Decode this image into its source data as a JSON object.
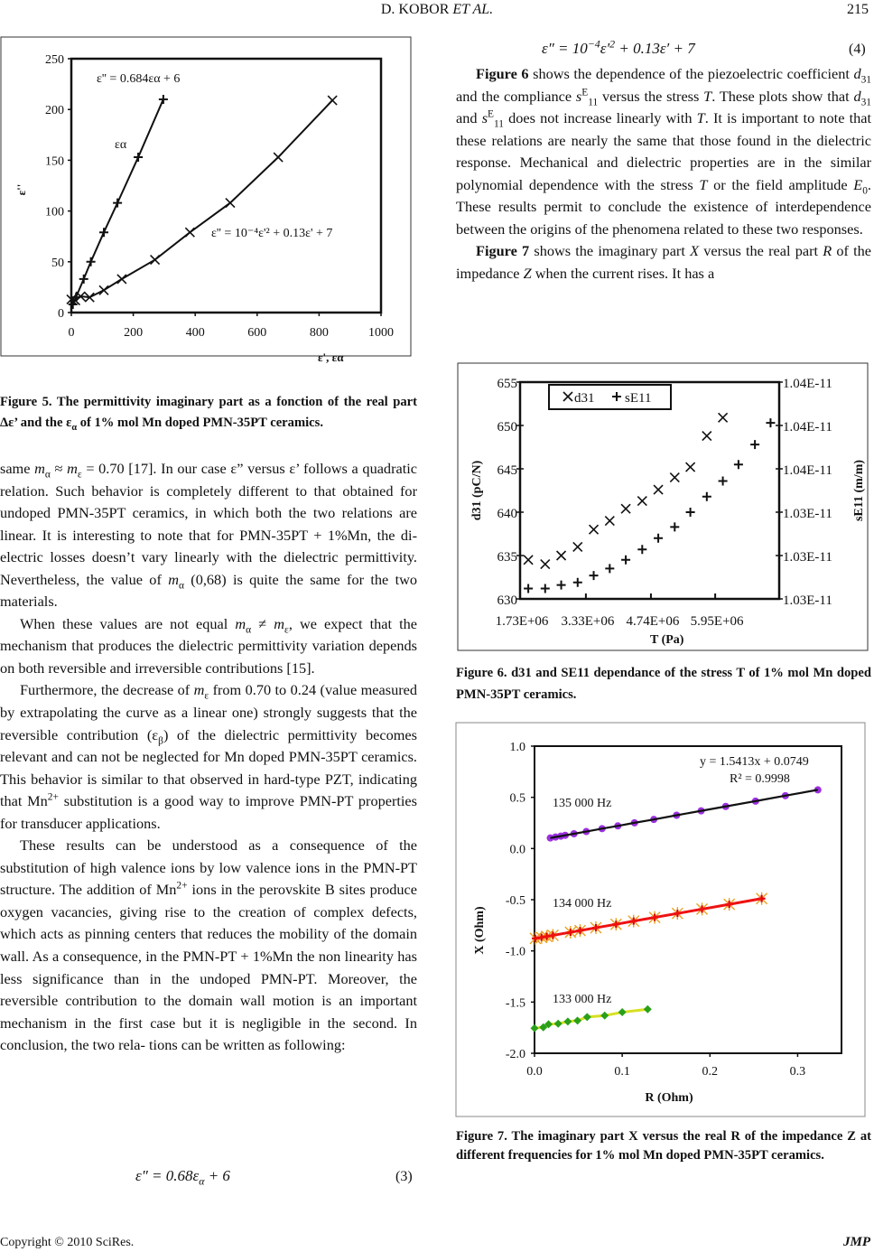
{
  "header": {
    "author": "D. KOBOR ",
    "etal": "ET AL.",
    "page": "215"
  },
  "footer": {
    "copyright": "Copyright © 2010 SciRes.",
    "journal": "JMP"
  },
  "left_paragraphs": [
    [
      [
        "same ",
        ""
      ],
      [
        "m",
        "i"
      ],
      [
        "α",
        "sub"
      ],
      [
        " ≈ ",
        ""
      ],
      [
        "m",
        "i"
      ],
      [
        "ε",
        "sub"
      ],
      [
        " = 0.70 [17]. In our case ε” versus ε’ fol­lows a quadratic relation. Such behavior is completely different to that obtained for undoped PMN-35PT ce­ramics, in which both the two relations are linear. It is interesting to note that for PMN-35PT + 1%Mn, the di­electric losses doesn’t vary linearly with the dielectric permittivity. Nevertheless, the value of ",
        ""
      ],
      [
        "m",
        "i"
      ],
      [
        "α",
        "sub"
      ],
      [
        " (0,68) is quite the same for the two materials.",
        ""
      ]
    ],
    [
      [
        "When these values are not equal ",
        ""
      ],
      [
        "m",
        "i"
      ],
      [
        "α",
        "sub"
      ],
      [
        " ≠ ",
        ""
      ],
      [
        "m",
        "i"
      ],
      [
        "ε",
        "sub"
      ],
      [
        ", we expect that the mechanism that produces the dielectric permit­tivity variation depends on both reversible and irreversi­ble contributions [15].",
        ""
      ]
    ],
    [
      [
        "Furthermore, the decrease of ",
        ""
      ],
      [
        "m",
        "i"
      ],
      [
        "ε",
        "sub"
      ],
      [
        " from 0.70 to 0.24 (value measured by extrapolating the curve as a linear one) strongly suggests that the reversible contribution (ε",
        ""
      ],
      [
        "β",
        "sub"
      ],
      [
        ") of the dielectric permittivity becomes relevant and can not be neglected for Mn doped PMN-35PT ceramics. This behavior is similar to that observed in hard-type PZT, indicating that Mn",
        ""
      ],
      [
        "2+",
        "sup"
      ],
      [
        " substitution is a good way to improve PMN-PT properties for transducer applications.",
        ""
      ]
    ],
    [
      [
        "These results can be understood as a consequence of the substitution of high valence ions by low valence ions in the PMN-PT structure. The addition of Mn",
        ""
      ],
      [
        "2+",
        "sup"
      ],
      [
        " ions in the perovskite B sites produce oxygen vacancies, giving rise to the creation of complex defects, which acts as pinning centers that reduces the mobility of the domain wall. As a consequence, in the PMN-PT + 1%Mn the non linearity has less significance than in the undoped PMN-PT. Moreover, the reversible contribution to the domain wall motion is an important mechanism in the first case but it is negligible in the second. In conclusion, the two rela- tions can be written as following:",
        ""
      ]
    ]
  ],
  "right_paragraphs": [
    [
      [
        "Figure 6",
        "b"
      ],
      [
        " shows the dependence of the piezoelectric coefficient ",
        ""
      ],
      [
        "d",
        "i"
      ],
      [
        "31",
        "sub"
      ],
      [
        " and the compliance ",
        ""
      ],
      [
        "s",
        "i"
      ],
      [
        "E",
        "sup"
      ],
      [
        "11",
        "sub"
      ],
      [
        " versus the stress ",
        ""
      ],
      [
        "T",
        "i"
      ],
      [
        ". These plots show that ",
        ""
      ],
      [
        "d",
        "i"
      ],
      [
        "31",
        "sub"
      ],
      [
        " and ",
        ""
      ],
      [
        "s",
        "i"
      ],
      [
        "E",
        "sup"
      ],
      [
        "11",
        "sub"
      ],
      [
        " does not increase line­arly with ",
        ""
      ],
      [
        "T",
        "i"
      ],
      [
        ". It is important to note that these relations are nearly the same that those found in the dielectric re­sponse. Mechanical and dielectric properties are in the similar polynomial dependence with the stress ",
        ""
      ],
      [
        "T",
        "i"
      ],
      [
        " or the field amplitude ",
        ""
      ],
      [
        "E",
        "i"
      ],
      [
        "0",
        "sub"
      ],
      [
        ". These results permit to conclude the existence of interdependence between the origins of the phenomena related to these two responses.",
        ""
      ]
    ],
    [
      [
        "Figure 7",
        "b"
      ],
      [
        " shows the imaginary part ",
        ""
      ],
      [
        "X",
        "i"
      ],
      [
        " versus the real part ",
        ""
      ],
      [
        "R",
        "i"
      ],
      [
        " of the impedance ",
        ""
      ],
      [
        "Z",
        "i"
      ],
      [
        " when the current rises. It has a",
        ""
      ]
    ]
  ],
  "equations": {
    "eq3": [
      [
        "ε″ = 0.68ε",
        ""
      ],
      [
        "α",
        "sub"
      ],
      [
        " + 6",
        ""
      ]
    ],
    "eq3_number": "(3)",
    "eq4": [
      [
        "ε″ = 10",
        ""
      ],
      [
        "−4",
        "sup"
      ],
      [
        "ε′",
        ""
      ],
      [
        "2",
        "sup"
      ],
      [
        " + 0.13ε′ + 7",
        ""
      ]
    ],
    "eq4_number": "(4)"
  },
  "captions": {
    "fig5": [
      [
        "Figure 5. The permittivity imaginary part as a fonction of the real part Δε’ and the ε",
        ""
      ],
      [
        "α",
        "sub"
      ],
      [
        " of 1% mol Mn doped PMN-35PT ceramics.",
        ""
      ]
    ],
    "fig6": [
      [
        "Figure 6. d31 and SE11 dependance of the stress T of 1% mol Mn doped PMN-35PT ceramics.",
        ""
      ]
    ],
    "fig7": [
      [
        "Figure 7. The imaginary part X versus the real R of the impedance Z at different frequencies for 1% mol Mn doped PMN-35PT ceramics.",
        ""
      ]
    ]
  },
  "chart_data": [
    {
      "id": "fig5",
      "type": "line",
      "xlabel": "ε', εα",
      "ylabel": "ε''",
      "xlim": [
        0,
        1000
      ],
      "ylim": [
        0,
        250
      ],
      "xticks": [
        0,
        200,
        400,
        600,
        800,
        1000
      ],
      "yticks": [
        0,
        50,
        100,
        150,
        200,
        250
      ],
      "annotations": {
        "alpha_fit": "ε'' = 0.684εα + 6",
        "alpha_label": "εα",
        "quad_fit": "ε'' = 10⁻⁴ε'² + 0.13ε' + 7"
      },
      "series": [
        {
          "name": "εα",
          "marker": "plus",
          "color": "#111111",
          "x": [
            5,
            15,
            40,
            63,
            105,
            149,
            216,
            297
          ],
          "y": [
            8,
            15,
            33,
            50,
            79,
            108,
            153,
            210
          ]
        },
        {
          "name": "ε'",
          "marker": "cross",
          "color": "#111111",
          "x": [
            0,
            13,
            30,
            59,
            105,
            163,
            270,
            383,
            513,
            668,
            843
          ],
          "y": [
            13,
            12,
            16,
            15,
            22,
            33,
            52,
            79,
            108,
            153,
            209
          ]
        }
      ]
    },
    {
      "id": "fig6",
      "type": "scatter",
      "xlabel": "T (Pa)",
      "ylabel": "d31 (pC/N)",
      "y2label": "sE11 (m/m)",
      "xlim": [
        1730000,
        8030000
      ],
      "ylim": [
        630,
        655
      ],
      "y2lim_e11": [
        1.03,
        1.04
      ],
      "xtick_labels": [
        "1.73E+06",
        "3.33E+06",
        "4.74E+06",
        "5.95E+06"
      ],
      "yticks": [
        630,
        635,
        640,
        645,
        650,
        655
      ],
      "y2tick_labels": [
        "1.03E-11",
        "1.03E-11",
        "1.03E-11",
        "1.04E-11",
        "1.04E-11",
        "1.04E-11"
      ],
      "legend": {
        "position": "top-left",
        "d31": "d31",
        "sE11": "sE11"
      },
      "series": [
        {
          "name": "d31",
          "marker": "cross",
          "axis": "left",
          "x": [
            1930000,
            2340000,
            2730000,
            3130000,
            3520000,
            3910000,
            4300000,
            4700000,
            5090000,
            5490000,
            5870000,
            6270000,
            6660000
          ],
          "y": [
            634.5,
            634.0,
            635.0,
            636.0,
            638.0,
            639.0,
            640.4,
            641.3,
            642.6,
            644.0,
            645.2,
            648.8,
            650.9
          ]
        },
        {
          "name": "sE11",
          "marker": "plus",
          "axis": "right",
          "unit": "1e-11 m/m",
          "x": [
            1930000,
            2340000,
            2730000,
            3130000,
            3520000,
            3910000,
            4300000,
            4700000,
            5090000,
            5490000,
            5870000,
            6270000,
            6660000,
            7040000,
            7440000,
            7820000
          ],
          "y": [
            1.03048,
            1.03048,
            1.03064,
            1.03076,
            1.03108,
            1.0314,
            1.0318,
            1.03228,
            1.0328,
            1.03332,
            1.034,
            1.03472,
            1.03544,
            1.0362,
            1.03712,
            1.03812
          ]
        }
      ]
    },
    {
      "id": "fig7",
      "type": "line",
      "xlabel": "R (Ohm)",
      "ylabel": "X (Ohm)",
      "xlim": [
        0,
        0.35
      ],
      "ylim": [
        -2.0,
        1.0
      ],
      "xticks": [
        "0.0",
        "0.1",
        "0.2",
        "0.3"
      ],
      "yticks": [
        "-2.0",
        "-1.5",
        "-1.0",
        "-0.5",
        "0.0",
        "0.5",
        "1.0"
      ],
      "annotations": {
        "fit": "y = 1.5413x + 0.0749",
        "r2": "R² = 0.9998"
      },
      "series": [
        {
          "name": "135 000 Hz",
          "marker": "circle",
          "color": "#9b30e0",
          "line": "#111111",
          "x": [
            0.018,
            0.024,
            0.03,
            0.035,
            0.045,
            0.059,
            0.077,
            0.095,
            0.114,
            0.136,
            0.162,
            0.19,
            0.218,
            0.252,
            0.286,
            0.323
          ],
          "y": [
            0.103,
            0.112,
            0.121,
            0.129,
            0.144,
            0.166,
            0.194,
            0.221,
            0.251,
            0.284,
            0.325,
            0.368,
            0.411,
            0.463,
            0.516,
            0.573
          ]
        },
        {
          "name": "134 000 Hz",
          "marker": "star",
          "color": "#e8a020",
          "line": "#ee1111",
          "x": [
            0.001,
            0.008,
            0.014,
            0.021,
            0.041,
            0.052,
            0.07,
            0.093,
            0.113,
            0.137,
            0.163,
            0.191,
            0.222,
            0.259
          ],
          "y": [
            -0.878,
            -0.868,
            -0.859,
            -0.848,
            -0.818,
            -0.801,
            -0.774,
            -0.74,
            -0.709,
            -0.673,
            -0.634,
            -0.592,
            -0.545,
            -0.489
          ]
        },
        {
          "name": "133 000 Hz",
          "marker": "diamond",
          "color": "#2aa01a",
          "line": "#d8e020",
          "x": [
            0,
            0.01,
            0.016,
            0.027,
            0.038,
            0.049,
            0.06,
            0.08,
            0.1,
            0.129
          ],
          "y": [
            -1.755,
            -1.746,
            -1.717,
            -1.711,
            -1.69,
            -1.681,
            -1.646,
            -1.632,
            -1.599,
            -1.57
          ]
        }
      ]
    }
  ]
}
